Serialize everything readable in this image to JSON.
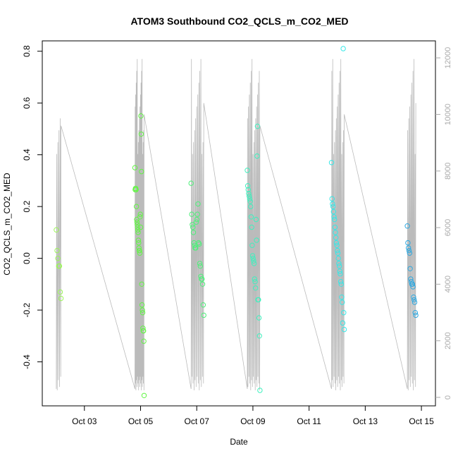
{
  "chart_data": {
    "type": "scatter",
    "title": "ATOM3 Southbound CO2_QCLS_m_CO2_MED",
    "xlabel": "Date",
    "ylabel": "CO2_QCLS_m_CO2_MED",
    "xlim": [
      "2017-10-01T12:00",
      "2017-10-15T12:00"
    ],
    "ylim": [
      -0.57,
      0.84
    ],
    "y2lim": [
      -300,
      12600
    ],
    "grid": false,
    "x_ticks": [
      {
        "date": "2017-10-03",
        "label": "Oct 03"
      },
      {
        "date": "2017-10-05",
        "label": "Oct 05"
      },
      {
        "date": "2017-10-07",
        "label": "Oct 07"
      },
      {
        "date": "2017-10-09",
        "label": "Oct 09"
      },
      {
        "date": "2017-10-11",
        "label": "Oct 11"
      },
      {
        "date": "2017-10-13",
        "label": "Oct 13"
      },
      {
        "date": "2017-10-15",
        "label": "Oct 15"
      }
    ],
    "y_ticks": [
      -0.4,
      -0.2,
      0.0,
      0.2,
      0.4,
      0.6,
      0.8
    ],
    "y_tick_labels": [
      "-0.4",
      "-0.2",
      "0.0",
      "0.2",
      "0.4",
      "0.6",
      "0.8"
    ],
    "y2_ticks": [
      0,
      2000,
      4000,
      6000,
      8000,
      10000,
      12000
    ],
    "y2_tick_labels": [
      "0",
      "2000",
      "4000",
      "6000",
      "8000",
      "10000",
      "12000"
    ],
    "altitude_color": "#bbbbbb",
    "flights": [
      {
        "start": "2017-10-02T00:00",
        "end": "2017-10-02T04:00",
        "color": "#9cf55a",
        "points": [
          0.11,
          0.03,
          0.0,
          -0.03,
          -0.03,
          -0.13,
          -0.155
        ]
      },
      {
        "start": "2017-10-04T19:12",
        "end": "2017-10-05T03:00",
        "color": "#62f545",
        "points": [
          0.35,
          0.265,
          0.27,
          0.27,
          0.265,
          0.2,
          0.15,
          0.14,
          0.13,
          0.12,
          0.11,
          0.1,
          0.07,
          0.06,
          0.04,
          0.03,
          0.03,
          0.02,
          0.16,
          0.17,
          0.12,
          0.55,
          0.48,
          0.335,
          -0.1,
          -0.18,
          -0.2,
          -0.21,
          -0.27,
          -0.28,
          -0.28,
          -0.32,
          -0.53
        ]
      },
      {
        "start": "2017-10-06T19:12",
        "end": "2017-10-07T06:00",
        "color": "#4ef07a",
        "points": [
          0.29,
          0.17,
          0.13,
          0.12,
          0.1,
          0.06,
          0.05,
          0.04,
          0.04,
          0.14,
          0.15,
          0.17,
          0.21,
          0.06,
          0.055,
          -0.02,
          -0.03,
          -0.07,
          -0.08,
          -0.08,
          -0.1,
          -0.18,
          -0.22
        ]
      },
      {
        "start": "2017-10-08T19:12",
        "end": "2017-10-09T06:00",
        "color": "#3ff0be",
        "points": [
          0.34,
          0.28,
          0.265,
          0.25,
          0.24,
          0.23,
          0.22,
          0.2,
          0.16,
          0.12,
          0.05,
          0.01,
          0.0,
          -0.01,
          -0.02,
          -0.08,
          -0.09,
          -0.115,
          0.15,
          0.07,
          0.395,
          0.51,
          -0.16,
          -0.16,
          -0.23,
          -0.3,
          -0.51
        ]
      },
      {
        "start": "2017-10-11T19:12",
        "end": "2017-10-12T06:00",
        "color": "#36e8e8",
        "points": [
          0.37,
          0.23,
          0.21,
          0.2,
          0.18,
          0.16,
          0.15,
          0.12,
          0.1,
          0.08,
          0.06,
          0.05,
          0.03,
          0.02,
          0.0,
          -0.02,
          -0.03,
          -0.05,
          -0.06,
          -0.09,
          -0.1,
          -0.15,
          -0.17,
          -0.25,
          0.81,
          -0.21,
          -0.275
        ]
      },
      {
        "start": "2017-10-14T12:00",
        "end": "2017-10-14T19:12",
        "color": "#2ea8e0",
        "points": [
          0.125,
          0.06,
          0.04,
          0.03,
          0.02,
          -0.04,
          -0.08,
          -0.09,
          -0.1,
          -0.1,
          -0.11,
          -0.15,
          -0.16,
          -0.17,
          -0.21,
          -0.22
        ]
      }
    ]
  }
}
